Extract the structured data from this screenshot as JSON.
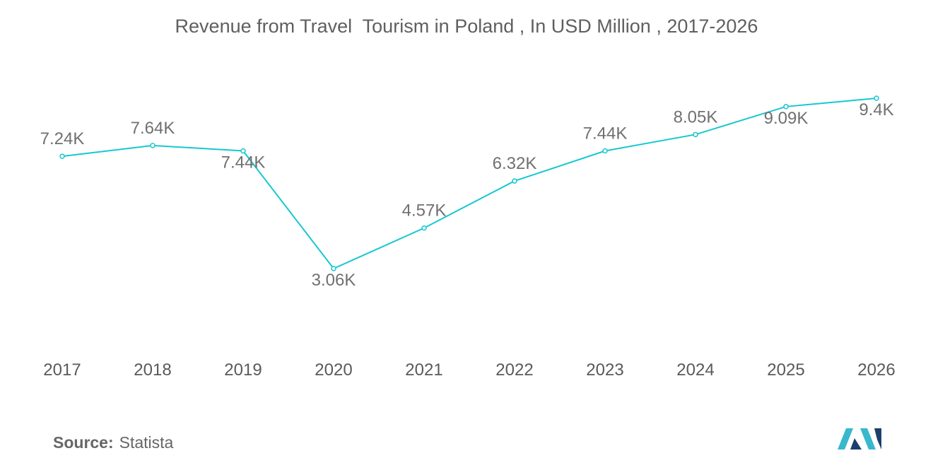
{
  "title": "Revenue from Travel  Tourism in Poland , In USD Million , 2017-2026",
  "colors": {
    "line": "#17c8d0",
    "label": "#707070",
    "tick": "#5a5a5a",
    "logo_dark": "#1c3f6e",
    "logo_light": "#38b8cc"
  },
  "chart_data": {
    "type": "line",
    "title": "Revenue from Travel  Tourism in Poland , In USD Million , 2017-2026",
    "categories": [
      "2017",
      "2018",
      "2019",
      "2020",
      "2021",
      "2022",
      "2023",
      "2024",
      "2025",
      "2026"
    ],
    "values": [
      7240,
      7640,
      7440,
      3060,
      4570,
      6320,
      7440,
      8050,
      9090,
      9400
    ],
    "data_labels": [
      "7.24K",
      "7.64K",
      "7.44K",
      "3.06K",
      "4.57K",
      "6.32K",
      "7.44K",
      "8.05K",
      "9.09K",
      "9.4K"
    ],
    "xlabel": "",
    "ylabel": "",
    "grid": false,
    "y_axis_visible": false
  },
  "source": {
    "label": "Source:",
    "value": "Statista"
  },
  "logo": {
    "icon": "mordor-intelligence-logo-icon"
  }
}
